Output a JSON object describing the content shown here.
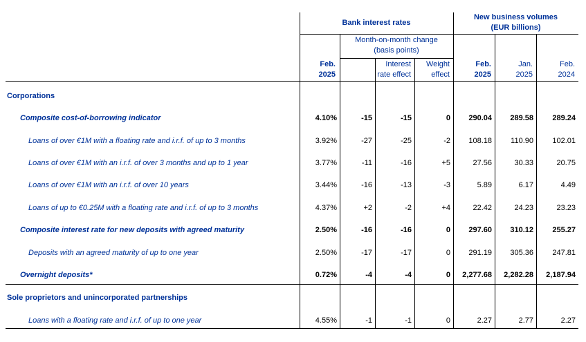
{
  "header": {
    "bank_rates": "Bank interest rates",
    "volumes_line1": "New business volumes",
    "volumes_line2": "(EUR billions)",
    "mom_line1": "Month-on-month change",
    "mom_line2": "(basis points)",
    "col_rate_line1": "Feb.",
    "col_rate_line2": "2025",
    "col_ire_line1": "Interest",
    "col_ire_line2": "rate effect",
    "col_we_line1": "Weight",
    "col_we_line2": "effect",
    "col_v1_line1": "Feb.",
    "col_v1_line2": "2025",
    "col_v2_line1": "Jan.",
    "col_v2_line2": "2025",
    "col_v3_line1": "Feb.",
    "col_v3_line2": "2024"
  },
  "rows": [
    {
      "label": "Corporations",
      "style": "section",
      "cells": []
    },
    {
      "label": "Composite cost-of-borrowing indicator",
      "style": "indicator",
      "cells": [
        "4.10%",
        "-15",
        "-15",
        "0",
        "290.04",
        "289.58",
        "289.24"
      ]
    },
    {
      "label": "Loans of over €1M with a floating rate and i.r.f. of up to 3 months",
      "style": "sub",
      "cells": [
        "3.92%",
        "-27",
        "-25",
        "-2",
        "108.18",
        "110.90",
        "102.01"
      ]
    },
    {
      "label": "Loans of over €1M with an i.r.f. of over 3 months and up to 1 year",
      "style": "sub",
      "cells": [
        "3.77%",
        "-11",
        "-16",
        "+5",
        "27.56",
        "30.33",
        "20.75"
      ]
    },
    {
      "label": "Loans of over €1M with an i.r.f. of over 10 years",
      "style": "sub",
      "cells": [
        "3.44%",
        "-16",
        "-13",
        "-3",
        "5.89",
        "6.17",
        "4.49"
      ]
    },
    {
      "label": "Loans of up to €0.25M with a floating rate and i.r.f. of up to 3 months",
      "style": "sub",
      "cells": [
        "4.37%",
        "+2",
        "-2",
        "+4",
        "22.42",
        "24.23",
        "23.23"
      ]
    },
    {
      "label": "Composite interest rate for new deposits with agreed maturity",
      "style": "indicator",
      "cells": [
        "2.50%",
        "-16",
        "-16",
        "0",
        "297.60",
        "310.12",
        "255.27"
      ]
    },
    {
      "label": "Deposits with an agreed maturity of up to one year",
      "style": "sub",
      "cells": [
        "2.50%",
        "-17",
        "-17",
        "0",
        "291.19",
        "305.36",
        "247.81"
      ]
    },
    {
      "label": "Overnight deposits*",
      "style": "indicator",
      "cells": [
        "0.72%",
        "-4",
        "-4",
        "0",
        "2,277.68",
        "2,282.28",
        "2,187.94"
      ]
    },
    {
      "label": "Sole proprietors and unincorporated partnerships",
      "style": "section",
      "cells": []
    },
    {
      "label": "Loans with a floating rate and i.r.f. of up to one year",
      "style": "sub",
      "cells": [
        "4.55%",
        "-1",
        "-1",
        "0",
        "2.27",
        "2.77",
        "2.27"
      ]
    }
  ]
}
